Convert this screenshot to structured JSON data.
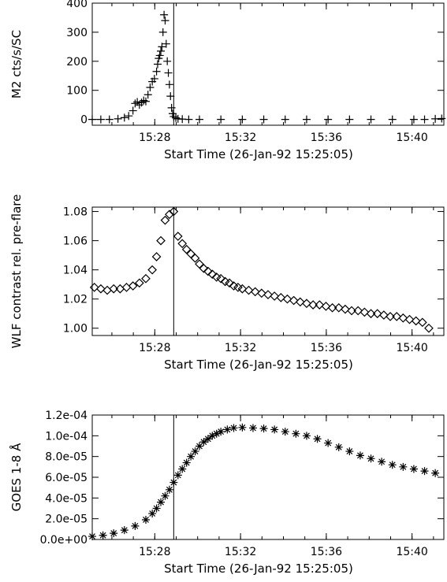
{
  "chart_data": [
    {
      "type": "scatter",
      "marker": "plus",
      "xlabel": "Start Time (26-Jan-92 15:25:05)",
      "ylabel": "M2 cts/s/SC",
      "x_unit": "minutes after 15:25:05",
      "xlim": [
        0,
        16.4
      ],
      "ylim": [
        -20,
        400
      ],
      "x_tick_labels": [
        "15:28",
        "15:32",
        "15:36",
        "15:40"
      ],
      "x_tick_values": [
        2.9167,
        6.9167,
        10.9167,
        14.9167
      ],
      "y_tick_labels": [
        "0",
        "100",
        "200",
        "300",
        "400"
      ],
      "y_tick_values": [
        0,
        100,
        200,
        300,
        400
      ],
      "marker_line_at": 3.8,
      "series": [
        {
          "x": [
            0.0,
            0.4,
            0.8,
            1.2,
            1.5,
            1.7,
            1.9,
            2.0,
            2.1,
            2.2,
            2.3,
            2.4,
            2.5,
            2.6,
            2.7,
            2.8,
            2.9,
            3.0,
            3.05,
            3.1,
            3.15,
            3.2,
            3.25,
            3.3,
            3.35,
            3.4,
            3.45,
            3.5,
            3.55,
            3.6,
            3.65,
            3.7,
            3.75,
            3.8,
            3.9,
            4.0,
            4.2,
            4.5,
            5.0,
            6.0,
            7.0,
            8.0,
            9.0,
            10.0,
            11.0,
            12.0,
            13.0,
            14.0,
            15.0,
            15.5,
            16.0,
            16.3
          ],
          "y": [
            0,
            0,
            0,
            2,
            6,
            12,
            30,
            55,
            60,
            50,
            58,
            65,
            62,
            85,
            110,
            130,
            140,
            165,
            190,
            210,
            220,
            235,
            250,
            300,
            360,
            340,
            260,
            200,
            160,
            120,
            80,
            40,
            20,
            10,
            5,
            2,
            1,
            0,
            0,
            0,
            0,
            0,
            0,
            0,
            0,
            0,
            0,
            0,
            0,
            0,
            2,
            3
          ]
        }
      ]
    },
    {
      "type": "scatter",
      "marker": "diamond",
      "xlabel": "Start Time (26-Jan-92 15:25:05)",
      "ylabel": "WLF contrast rel. pre-flare",
      "x_unit": "minutes after 15:25:05",
      "xlim": [
        0,
        16.4
      ],
      "ylim": [
        0.995,
        1.083
      ],
      "x_tick_labels": [
        "15:28",
        "15:32",
        "15:36",
        "15:40"
      ],
      "x_tick_values": [
        2.9167,
        6.9167,
        10.9167,
        14.9167
      ],
      "y_tick_labels": [
        "1.00",
        "1.02",
        "1.04",
        "1.06",
        "1.08"
      ],
      "y_tick_values": [
        1.0,
        1.02,
        1.04,
        1.06,
        1.08
      ],
      "marker_line_at": 3.8,
      "series": [
        {
          "x": [
            0.1,
            0.4,
            0.7,
            1.0,
            1.3,
            1.6,
            1.9,
            2.2,
            2.5,
            2.8,
            3.0,
            3.2,
            3.4,
            3.6,
            3.8,
            4.0,
            4.2,
            4.4,
            4.6,
            4.8,
            5.0,
            5.2,
            5.4,
            5.6,
            5.8,
            6.0,
            6.2,
            6.4,
            6.6,
            6.8,
            7.0,
            7.3,
            7.6,
            7.9,
            8.2,
            8.5,
            8.8,
            9.1,
            9.4,
            9.7,
            10.0,
            10.3,
            10.6,
            10.9,
            11.2,
            11.5,
            11.8,
            12.1,
            12.4,
            12.7,
            13.0,
            13.3,
            13.6,
            13.9,
            14.2,
            14.5,
            14.8,
            15.1,
            15.4,
            15.7
          ],
          "y": [
            1.028,
            1.027,
            1.026,
            1.027,
            1.027,
            1.028,
            1.029,
            1.031,
            1.034,
            1.04,
            1.049,
            1.06,
            1.074,
            1.078,
            1.08,
            1.063,
            1.058,
            1.054,
            1.051,
            1.048,
            1.044,
            1.041,
            1.039,
            1.037,
            1.035,
            1.034,
            1.032,
            1.031,
            1.029,
            1.028,
            1.027,
            1.026,
            1.025,
            1.024,
            1.023,
            1.022,
            1.021,
            1.02,
            1.019,
            1.018,
            1.017,
            1.016,
            1.016,
            1.015,
            1.014,
            1.014,
            1.013,
            1.012,
            1.012,
            1.011,
            1.01,
            1.01,
            1.009,
            1.008,
            1.008,
            1.007,
            1.006,
            1.005,
            1.004,
            1.0
          ]
        }
      ]
    },
    {
      "type": "scatter",
      "marker": "asterisk",
      "xlabel": "Start Time (26-Jan-92 15:25:05)",
      "ylabel": "GOES 1-8 Å",
      "x_unit": "minutes after 15:25:05",
      "xlim": [
        0,
        16.4
      ],
      "ylim": [
        0,
        0.00012
      ],
      "x_tick_labels": [
        "15:28",
        "15:32",
        "15:36",
        "15:40"
      ],
      "x_tick_values": [
        2.9167,
        6.9167,
        10.9167,
        14.9167
      ],
      "y_tick_labels": [
        "0.0e+00",
        "2.0e-05",
        "4.0e-05",
        "6.0e-05",
        "8.0e-05",
        "1.0e-04",
        "1.2e-04"
      ],
      "y_tick_values": [
        0,
        2e-05,
        4e-05,
        6e-05,
        8e-05,
        0.0001,
        0.00012
      ],
      "marker_line_at": 3.8,
      "series": [
        {
          "x": [
            0.0,
            0.5,
            1.0,
            1.5,
            2.0,
            2.5,
            2.8,
            3.0,
            3.2,
            3.4,
            3.6,
            3.8,
            4.0,
            4.2,
            4.4,
            4.6,
            4.8,
            5.0,
            5.2,
            5.4,
            5.6,
            5.8,
            6.0,
            6.3,
            6.6,
            7.0,
            7.5,
            8.0,
            8.5,
            9.0,
            9.5,
            10.0,
            10.5,
            11.0,
            11.5,
            12.0,
            12.5,
            13.0,
            13.5,
            14.0,
            14.5,
            15.0,
            15.5,
            16.0
          ],
          "y": [
            3e-06,
            4e-06,
            6e-06,
            9e-06,
            1.3e-05,
            1.9e-05,
            2.5e-05,
            3e-05,
            3.6e-05,
            4.2e-05,
            4.8e-05,
            5.5e-05,
            6.2e-05,
            6.8e-05,
            7.4e-05,
            8e-05,
            8.5e-05,
            9e-05,
            9.4e-05,
            9.7e-05,
            0.0001,
            0.000102,
            0.000104,
            0.000106,
            0.0001075,
            0.000108,
            0.0001075,
            0.000107,
            0.000106,
            0.000104,
            0.000102,
            0.0001,
            9.7e-05,
            9.3e-05,
            8.9e-05,
            8.5e-05,
            8.1e-05,
            7.8e-05,
            7.5e-05,
            7.2e-05,
            7e-05,
            6.8e-05,
            6.6e-05,
            6.4e-05
          ]
        }
      ]
    }
  ]
}
